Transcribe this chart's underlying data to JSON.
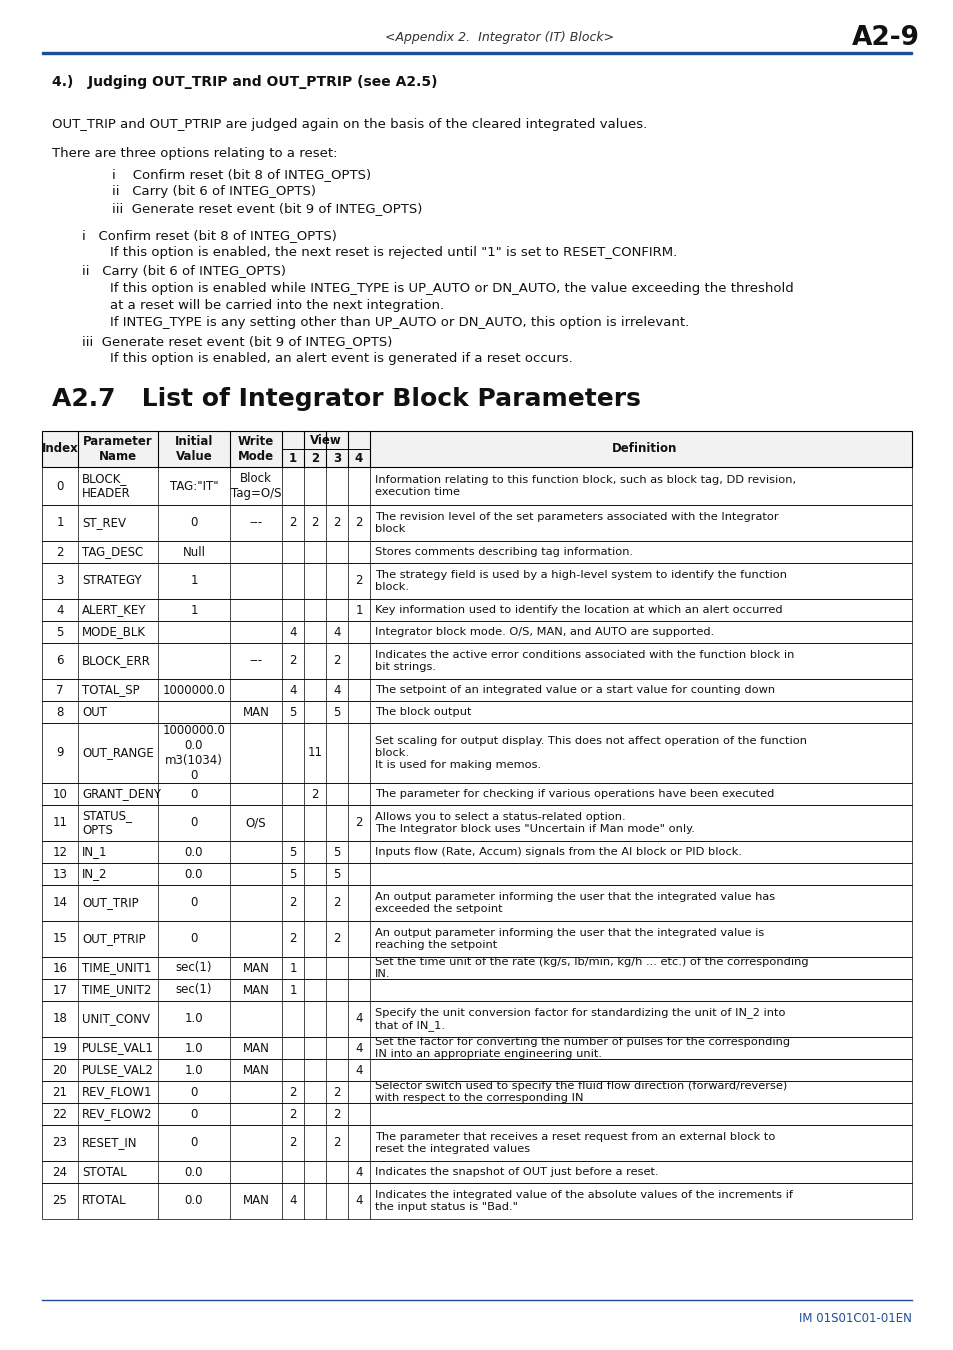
{
  "header_text": "<Appendix 2.  Integrator (IT) Block>",
  "page_num": "A2-9",
  "header_line_color": "#1f4e99",
  "section_title": "4.)   Judging OUT_TRIP and OUT_PTRIP (see A2.5)",
  "body_paragraphs": [
    {
      "text": "OUT_TRIP and OUT_PTRIP are judged again on the basis of the cleared integrated values.",
      "indent": 0,
      "bold": false,
      "space_before": 18
    },
    {
      "text": "There are three options relating to a reset:",
      "indent": 0,
      "bold": false,
      "space_before": 14
    },
    {
      "text": "i    Confirm reset (bit 8 of INTEG_OPTS)",
      "indent": 60,
      "bold": false,
      "space_before": 6
    },
    {
      "text": "ii   Carry (bit 6 of INTEG_OPTS)",
      "indent": 60,
      "bold": false,
      "space_before": 2
    },
    {
      "text": "iii  Generate reset event (bit 9 of INTEG_OPTS)",
      "indent": 60,
      "bold": false,
      "space_before": 2
    },
    {
      "text": "i   Confirm reset (bit 8 of INTEG_OPTS)",
      "indent": 30,
      "bold": false,
      "space_before": 12
    },
    {
      "text": "If this option is enabled, the next reset is rejected until \"1\" is set to RESET_CONFIRM.",
      "indent": 58,
      "bold": false,
      "space_before": 2
    },
    {
      "text": "ii   Carry (bit 6 of INTEG_OPTS)",
      "indent": 30,
      "bold": false,
      "space_before": 4
    },
    {
      "text": "If this option is enabled while INTEG_TYPE is UP_AUTO or DN_AUTO, the value exceeding the threshold",
      "indent": 58,
      "bold": false,
      "space_before": 2
    },
    {
      "text": "at a reset will be carried into the next integration.",
      "indent": 58,
      "bold": false,
      "space_before": 2
    },
    {
      "text": "If INTEG_TYPE is any setting other than UP_AUTO or DN_AUTO, this option is irrelevant.",
      "indent": 58,
      "bold": false,
      "space_before": 2
    },
    {
      "text": "iii  Generate reset event (bit 9 of INTEG_OPTS)",
      "indent": 30,
      "bold": false,
      "space_before": 4
    },
    {
      "text": "If this option is enabled, an alert event is generated if a reset occurs.",
      "indent": 58,
      "bold": false,
      "space_before": 2
    }
  ],
  "section2_title": "A2.7   List of Integrator Block Parameters",
  "footer_text": "IM 01S01C01-01EN",
  "footer_line_color": "#1f4e99",
  "footer_text_color": "#1f4e99",
  "bg_color": "#ffffff",
  "table_rows": [
    {
      "idx": "0",
      "name": "BLOCK_\nHEADER",
      "init": "TAG:\"IT\"",
      "write": "Block\nTag=O/S",
      "v1": "",
      "v2": "",
      "v3": "",
      "v4": "",
      "def": "Information relating to this function block, such as block tag, DD revision,\nexecution time",
      "rh": 38
    },
    {
      "idx": "1",
      "name": "ST_REV",
      "init": "0",
      "write": "---",
      "v1": "2",
      "v2": "2",
      "v3": "2",
      "v4": "2",
      "def": "The revision level of the set parameters associated with the Integrator\nblock",
      "rh": 36
    },
    {
      "idx": "2",
      "name": "TAG_DESC",
      "init": "Null",
      "write": "",
      "v1": "",
      "v2": "",
      "v3": "",
      "v4": "",
      "def": "Stores comments describing tag information.",
      "rh": 22
    },
    {
      "idx": "3",
      "name": "STRATEGY",
      "init": "1",
      "write": "",
      "v1": "",
      "v2": "",
      "v3": "",
      "v4": "2",
      "def": "The strategy field is used by a high-level system to identify the function\nblock.",
      "rh": 36
    },
    {
      "idx": "4",
      "name": "ALERT_KEY",
      "init": "1",
      "write": "",
      "v1": "",
      "v2": "",
      "v3": "",
      "v4": "1",
      "def": "Key information used to identify the location at which an alert occurred",
      "rh": 22
    },
    {
      "idx": "5",
      "name": "MODE_BLK",
      "init": "",
      "write": "",
      "v1": "4",
      "v2": "",
      "v3": "4",
      "v4": "",
      "def": "Integrator block mode. O/S, MAN, and AUTO are supported.",
      "rh": 22
    },
    {
      "idx": "6",
      "name": "BLOCK_ERR",
      "init": "",
      "write": "---",
      "v1": "2",
      "v2": "",
      "v3": "2",
      "v4": "",
      "def": "Indicates the active error conditions associated with the function block in\nbit strings.",
      "rh": 36
    },
    {
      "idx": "7",
      "name": "TOTAL_SP",
      "init": "1000000.0",
      "write": "",
      "v1": "4",
      "v2": "",
      "v3": "4",
      "v4": "",
      "def": "The setpoint of an integrated value or a start value for counting down",
      "rh": 22
    },
    {
      "idx": "8",
      "name": "OUT",
      "init": "",
      "write": "MAN",
      "v1": "5",
      "v2": "",
      "v3": "5",
      "v4": "",
      "def": "The block output",
      "rh": 22
    },
    {
      "idx": "9",
      "name": "OUT_RANGE",
      "init": "1000000.0\n0.0\nm3(1034)\n0",
      "write": "",
      "v1": "",
      "v2": "11",
      "v3": "",
      "v4": "",
      "def": "Set scaling for output display. This does not affect operation of the function\nblock.\nIt is used for making memos.",
      "rh": 60
    },
    {
      "idx": "10",
      "name": "GRANT_DENY",
      "init": "0",
      "write": "",
      "v1": "",
      "v2": "2",
      "v3": "",
      "v4": "",
      "def": "The parameter for checking if various operations have been executed",
      "rh": 22
    },
    {
      "idx": "11",
      "name": "STATUS_\nOPTS",
      "init": "0",
      "write": "O/S",
      "v1": "",
      "v2": "",
      "v3": "",
      "v4": "2",
      "def": "Allows you to select a status-related option.\nThe Integrator block uses \"Uncertain if Man mode\" only.",
      "rh": 36
    },
    {
      "idx": "12",
      "name": "IN_1",
      "init": "0.0",
      "write": "",
      "v1": "5",
      "v2": "",
      "v3": "5",
      "v4": "",
      "def": "Inputs flow (Rate, Accum) signals from the AI block or PID block.",
      "rh": 22
    },
    {
      "idx": "13",
      "name": "IN_2",
      "init": "0.0",
      "write": "",
      "v1": "5",
      "v2": "",
      "v3": "5",
      "v4": "",
      "def": "",
      "rh": 22
    },
    {
      "idx": "14",
      "name": "OUT_TRIP",
      "init": "0",
      "write": "",
      "v1": "2",
      "v2": "",
      "v3": "2",
      "v4": "",
      "def": "An output parameter informing the user that the integrated value has\nexceeded the setpoint",
      "rh": 36
    },
    {
      "idx": "15",
      "name": "OUT_PTRIP",
      "init": "0",
      "write": "",
      "v1": "2",
      "v2": "",
      "v3": "2",
      "v4": "",
      "def": "An output parameter informing the user that the integrated value is\nreaching the setpoint",
      "rh": 36
    },
    {
      "idx": "16",
      "name": "TIME_UNIT1",
      "init": "sec(1)",
      "write": "MAN",
      "v1": "1",
      "v2": "",
      "v3": "",
      "v4": "",
      "def": "Set the time unit of the rate (kg/s, lb/min, kg/h ... etc.) of the corresponding\nIN.",
      "rh": 22
    },
    {
      "idx": "17",
      "name": "TIME_UNIT2",
      "init": "sec(1)",
      "write": "MAN",
      "v1": "1",
      "v2": "",
      "v3": "",
      "v4": "",
      "def": "",
      "rh": 22
    },
    {
      "idx": "18",
      "name": "UNIT_CONV",
      "init": "1.0",
      "write": "",
      "v1": "",
      "v2": "",
      "v3": "",
      "v4": "4",
      "def": "Specify the unit conversion factor for standardizing the unit of IN_2 into\nthat of IN_1.",
      "rh": 36
    },
    {
      "idx": "19",
      "name": "PULSE_VAL1",
      "init": "1.0",
      "write": "MAN",
      "v1": "",
      "v2": "",
      "v3": "",
      "v4": "4",
      "def": "Set the factor for converting the number of pulses for the corresponding\nIN into an appropriate engineering unit.",
      "rh": 22
    },
    {
      "idx": "20",
      "name": "PULSE_VAL2",
      "init": "1.0",
      "write": "MAN",
      "v1": "",
      "v2": "",
      "v3": "",
      "v4": "4",
      "def": "",
      "rh": 22
    },
    {
      "idx": "21",
      "name": "REV_FLOW1",
      "init": "0",
      "write": "",
      "v1": "2",
      "v2": "",
      "v3": "2",
      "v4": "",
      "def": "Selector switch used to specify the fluid flow direction (forward/reverse)\nwith respect to the corresponding IN",
      "rh": 22
    },
    {
      "idx": "22",
      "name": "REV_FLOW2",
      "init": "0",
      "write": "",
      "v1": "2",
      "v2": "",
      "v3": "2",
      "v4": "",
      "def": "",
      "rh": 22
    },
    {
      "idx": "23",
      "name": "RESET_IN",
      "init": "0",
      "write": "",
      "v1": "2",
      "v2": "",
      "v3": "2",
      "v4": "",
      "def": "The parameter that receives a reset request from an external block to\nreset the integrated values",
      "rh": 36
    },
    {
      "idx": "24",
      "name": "STOTAL",
      "init": "0.0",
      "write": "",
      "v1": "",
      "v2": "",
      "v3": "",
      "v4": "4",
      "def": "Indicates the snapshot of OUT just before a reset.",
      "rh": 22
    },
    {
      "idx": "25",
      "name": "RTOTAL",
      "init": "0.0",
      "write": "MAN",
      "v1": "4",
      "v2": "",
      "v3": "",
      "v4": "4",
      "def": "Indicates the integrated value of the absolute values of the increments if\nthe input status is \"Bad.\"",
      "rh": 36
    }
  ]
}
